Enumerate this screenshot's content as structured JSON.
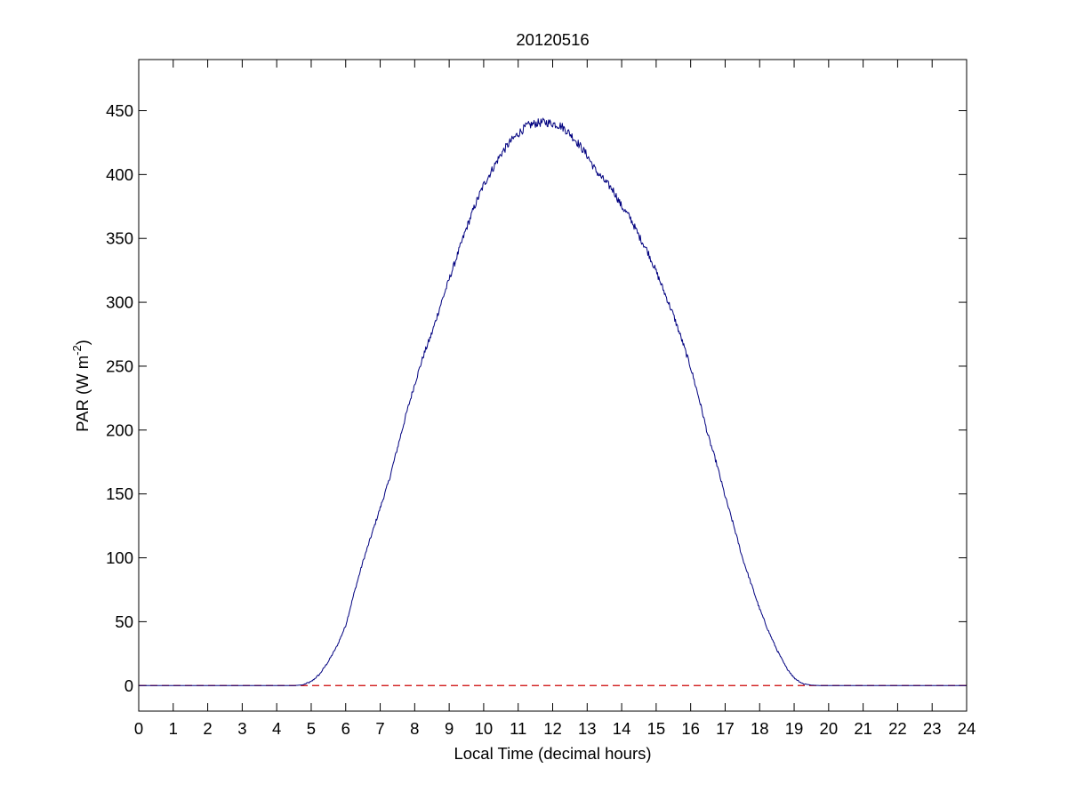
{
  "chart_data": {
    "type": "line",
    "title": "20120516",
    "xlabel": "Local Time (decimal hours)",
    "ylabel": {
      "prefix": "PAR (W m",
      "superscript": "-2",
      "suffix": ")"
    },
    "xlim": [
      0,
      24
    ],
    "ylim": [
      -20,
      490
    ],
    "x_ticks": [
      0,
      1,
      2,
      3,
      4,
      5,
      6,
      7,
      8,
      9,
      10,
      11,
      12,
      13,
      14,
      15,
      16,
      17,
      18,
      19,
      20,
      21,
      22,
      23,
      24
    ],
    "x_tick_labels": [
      "0",
      "1",
      "2",
      "3",
      "4",
      "5",
      "6",
      "7",
      "8",
      "9",
      "10",
      "11",
      "12",
      "13",
      "14",
      "15",
      "16",
      "17",
      "18",
      "19",
      "20",
      "21",
      "22",
      "23",
      "24"
    ],
    "y_ticks": [
      0,
      50,
      100,
      150,
      200,
      250,
      300,
      350,
      400,
      450
    ],
    "y_tick_labels": [
      "0",
      "50",
      "100",
      "150",
      "200",
      "250",
      "300",
      "350",
      "400",
      "450"
    ],
    "grid": false,
    "series": [
      {
        "style": "solid",
        "color": "#00007f",
        "x": [
          0,
          1,
          2,
          3,
          4,
          4.5,
          4.75,
          5.0,
          5.25,
          5.5,
          5.75,
          6.0,
          6.25,
          6.5,
          6.75,
          7.0,
          7.25,
          7.5,
          7.75,
          8.0,
          8.25,
          8.5,
          8.75,
          9.0,
          9.25,
          9.5,
          9.75,
          10.0,
          10.25,
          10.5,
          10.75,
          11.0,
          11.25,
          11.5,
          11.75,
          12.0,
          12.25,
          12.5,
          12.75,
          13.0,
          13.25,
          13.5,
          13.75,
          14.0,
          14.25,
          14.5,
          14.75,
          15.0,
          15.25,
          15.5,
          15.75,
          16.0,
          16.25,
          16.5,
          16.75,
          17.0,
          17.25,
          17.5,
          17.75,
          18.0,
          18.25,
          18.5,
          18.75,
          19.0,
          19.25,
          19.5,
          19.75,
          20,
          21,
          22,
          23,
          24
        ],
        "y": [
          0,
          0,
          0,
          0,
          0,
          0,
          0.5,
          3,
          9,
          19,
          31,
          47,
          73,
          97,
          118,
          139,
          160,
          186,
          212,
          236,
          258,
          276,
          298,
          318,
          338,
          358,
          376,
          392,
          404,
          416,
          425,
          432,
          438,
          440,
          441,
          440,
          438,
          432,
          424,
          415,
          403,
          395,
          388,
          375,
          366,
          352,
          340,
          324,
          307,
          290,
          270,
          249,
          224,
          196,
          174,
          148,
          125,
          100,
          80,
          60,
          43,
          28,
          15,
          6,
          1.5,
          0.3,
          0,
          0,
          0,
          0,
          0,
          0
        ]
      },
      {
        "style": "dashed",
        "color": "#cc0000",
        "x": [
          0,
          24
        ],
        "y": [
          0,
          0
        ]
      }
    ]
  }
}
